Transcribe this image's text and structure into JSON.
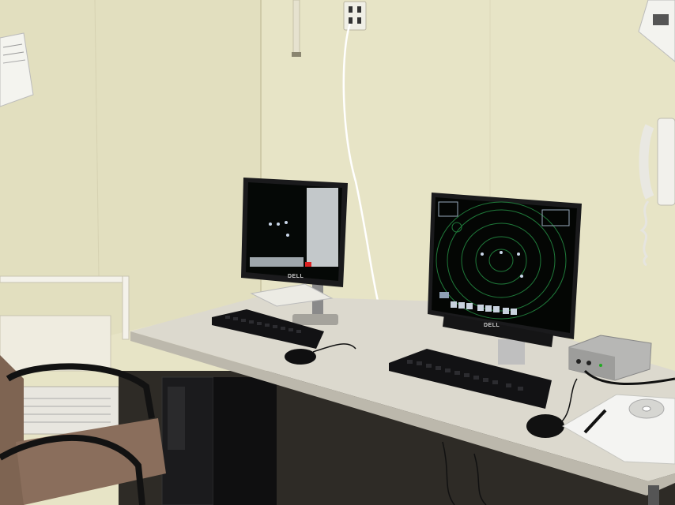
{
  "scene": {
    "description_free": true,
    "colors": {
      "wall": "#e9e6c9",
      "wall_shadow": "#d9d5b5",
      "desk": "#dedbd0",
      "desk_edge": "#bdb9ad",
      "floor": "#3a3630",
      "monitor_bezel": "#1a1a1c",
      "screen_dark": "#050806",
      "radar_green": "#1f7a3a",
      "chair_fabric": "#8a6e5c"
    },
    "monitors": [
      {
        "brand": "DELL",
        "screen": "radar-sparse"
      },
      {
        "brand": "DELL",
        "screen": "radar-rings"
      }
    ],
    "icons": [
      "power-outlet",
      "wall-phone",
      "keyboard",
      "mouse",
      "chair",
      "cd-disc",
      "pen",
      "tower-pc",
      "radiator"
    ]
  }
}
